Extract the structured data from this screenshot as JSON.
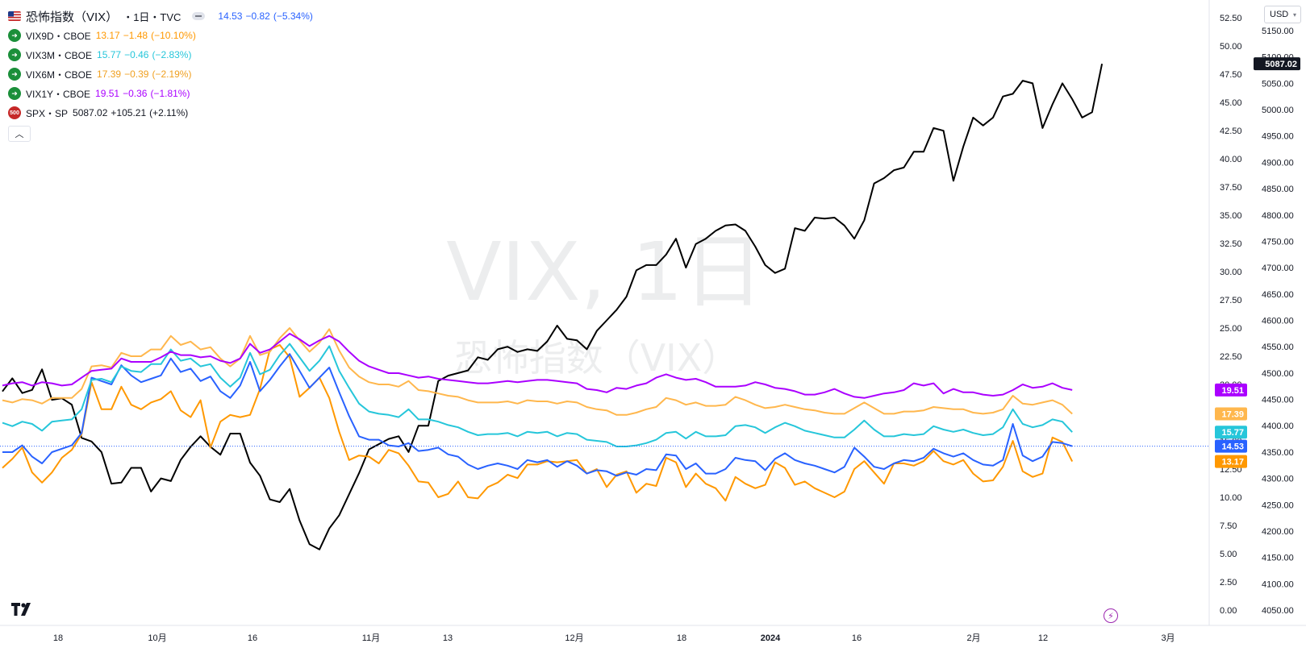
{
  "header": {
    "flag_icon": "us-flag-icon",
    "title": "恐怖指数（VIX）",
    "interval": "・1日・TVC",
    "last": "14.53",
    "change": "−0.82",
    "change_pct": "(−5.34%)",
    "change_color": "#2962ff"
  },
  "legend": [
    {
      "symbol": "VIX9D・CBOE",
      "icon": "arrow-right-icon",
      "value": "13.17",
      "change": "−1.48",
      "change_pct": "(−10.10%)",
      "color": "#ff9800"
    },
    {
      "symbol": "VIX3M・CBOE",
      "icon": "arrow-right-icon",
      "value": "15.77",
      "change": "−0.46",
      "change_pct": "(−2.83%)",
      "color": "#26c6da"
    },
    {
      "symbol": "VIX6M・CBOE",
      "icon": "arrow-right-icon",
      "value": "17.39",
      "change": "−0.39",
      "change_pct": "(−2.19%)",
      "color": "#ffb74d"
    },
    {
      "symbol": "VIX1Y・CBOE",
      "icon": "arrow-right-icon",
      "value": "19.51",
      "change": "−0.36",
      "change_pct": "(−1.81%)",
      "color": "#aa00ff"
    },
    {
      "symbol": "SPX・SP",
      "icon": "sp500-badge-icon",
      "icon_text": "500",
      "value": "5087.02",
      "change": "+105.21",
      "change_pct": "(+2.11%)",
      "color": "#131722"
    }
  ],
  "collapse_icon": "chevron-up-icon",
  "currency": "USD",
  "watermark": {
    "main": "VIX, 1日",
    "sub": "恐怖指数（VIX）"
  },
  "chart_data": {
    "type": "line",
    "x_tick_labels": [
      "18",
      "10月",
      "16",
      "11月",
      "13",
      "12月",
      "18",
      "2024",
      "16",
      "2月",
      "12",
      "3月"
    ],
    "left_axis": {
      "name": "VIX",
      "ylim": [
        -1.2,
        54.0
      ],
      "ticks": [
        "52.50",
        "50.00",
        "47.50",
        "45.00",
        "42.50",
        "40.00",
        "37.50",
        "35.00",
        "32.50",
        "30.00",
        "27.50",
        "25.00",
        "22.50",
        "20.00",
        "17.50",
        "15.00",
        "12.50",
        "10.00",
        "7.50",
        "5.00",
        "2.50",
        "0.00"
      ]
    },
    "right_axis": {
      "name": "SPX",
      "ylim": [
        4040,
        5183
      ],
      "ticks": [
        "5150.00",
        "5100.00",
        "5050.00",
        "5000.00",
        "4950.00",
        "4900.00",
        "4850.00",
        "4800.00",
        "4750.00",
        "4700.00",
        "4650.00",
        "4600.00",
        "4550.00",
        "4500.00",
        "4450.00",
        "4400.00",
        "4350.00",
        "4300.00",
        "4250.00",
        "4200.00",
        "4150.00",
        "4100.00",
        "4050.00"
      ]
    },
    "price_line": "14.53",
    "last_labels": [
      {
        "text": "5087.02",
        "value": 5087.02,
        "axis": "right",
        "color": "#131722"
      },
      {
        "text": "19.51",
        "value": 19.51,
        "axis": "left",
        "color": "#aa00ff"
      },
      {
        "text": "17.39",
        "value": 17.39,
        "axis": "left",
        "color": "#ffb74d"
      },
      {
        "text": "15.77",
        "value": 15.77,
        "axis": "left",
        "color": "#26c6da"
      },
      {
        "text": "14.53",
        "value": 14.53,
        "axis": "left",
        "color": "#2962ff"
      },
      {
        "text": "13.17",
        "value": 13.17,
        "axis": "left",
        "color": "#ff9800"
      }
    ],
    "series": [
      {
        "name": "SPX",
        "axis": "right",
        "color": "#000000",
        "values": [
          4465,
          4490,
          4462,
          4468,
          4507,
          4449,
          4452,
          4440,
          4377,
          4370,
          4350,
          4290,
          4292,
          4320,
          4320,
          4275,
          4300,
          4295,
          4335,
          4360,
          4380,
          4360,
          4345,
          4385,
          4385,
          4330,
          4305,
          4260,
          4255,
          4280,
          4220,
          4175,
          4165,
          4205,
          4230,
          4270,
          4310,
          4355,
          4365,
          4375,
          4380,
          4350,
          4400,
          4400,
          4485,
          4495,
          4500,
          4505,
          4530,
          4525,
          4545,
          4550,
          4540,
          4545,
          4542,
          4560,
          4590,
          4565,
          4562,
          4545,
          4580,
          4600,
          4620,
          4645,
          4695,
          4705,
          4705,
          4725,
          4755,
          4700,
          4745,
          4755,
          4770,
          4780,
          4782,
          4770,
          4740,
          4705,
          4690,
          4698,
          4775,
          4770,
          4795,
          4793,
          4795,
          4780,
          4755,
          4790,
          4860,
          4870,
          4885,
          4890,
          4920,
          4920,
          4965,
          4960,
          4865,
          4930,
          4985,
          4970,
          4985,
          5025,
          5030,
          5055,
          5050,
          4965,
          5010,
          5050,
          5020,
          4985,
          4995,
          5087
        ]
      },
      {
        "name": "VIX9D",
        "axis": "left",
        "color": "#ff9800",
        "values": [
          12.6,
          13.4,
          14.4,
          12.2,
          11.3,
          12.2,
          13.5,
          14.2,
          15.6,
          20.2,
          17.8,
          17.8,
          19.8,
          18.2,
          17.8,
          18.4,
          18.7,
          19.4,
          17.7,
          17.1,
          18.6,
          14.4,
          16.7,
          17.3,
          17.1,
          17.3,
          19.6,
          23.1,
          23.5,
          22.4,
          18.9,
          19.7,
          20.6,
          18.8,
          15.8,
          13.3,
          13.7,
          13.6,
          13.0,
          14.2,
          13.9,
          12.8,
          11.4,
          11.3,
          10.0,
          10.3,
          11.4,
          10.0,
          9.9,
          10.9,
          11.3,
          12.0,
          11.7,
          12.9,
          12.9,
          13.2,
          13.1,
          13.2,
          13.3,
          12.1,
          12.5,
          10.9,
          12.0,
          12.3,
          10.4,
          11.2,
          11.0,
          13.5,
          13.1,
          10.9,
          12.1,
          11.2,
          10.8,
          9.7,
          11.8,
          11.2,
          10.8,
          11.1,
          13.1,
          12.6,
          11.1,
          11.4,
          10.8,
          10.4,
          10.0,
          10.5,
          12.5,
          13.2,
          12.2,
          11.2,
          13.0,
          13.0,
          12.8,
          13.2,
          14.1,
          13.2,
          12.9,
          13.3,
          12.1,
          11.4,
          11.5,
          12.7,
          15.0,
          12.3,
          11.8,
          12.1,
          15.3,
          14.9,
          13.17
        ]
      },
      {
        "name": "VIX",
        "axis": "left",
        "color": "#2962ff",
        "values": [
          14.0,
          14.0,
          14.6,
          13.6,
          13.0,
          14.0,
          14.3,
          14.6,
          15.7,
          20.6,
          20.3,
          20.0,
          21.7,
          20.8,
          20.2,
          20.5,
          20.8,
          22.3,
          21.1,
          21.4,
          20.3,
          20.7,
          19.4,
          18.8,
          19.9,
          22.0,
          19.4,
          20.4,
          21.6,
          22.7,
          21.2,
          19.7,
          20.6,
          21.5,
          19.3,
          17.2,
          15.4,
          15.1,
          15.1,
          14.6,
          14.5,
          14.8,
          14.1,
          14.2,
          14.4,
          13.8,
          13.6,
          12.9,
          12.5,
          12.8,
          13.0,
          12.8,
          12.5,
          13.3,
          13.1,
          13.3,
          12.7,
          13.2,
          12.8,
          12.1,
          12.4,
          12.3,
          11.9,
          12.2,
          12.0,
          12.5,
          12.4,
          13.8,
          13.7,
          12.5,
          13.0,
          12.1,
          12.1,
          12.5,
          13.5,
          13.3,
          13.2,
          12.4,
          13.4,
          13.9,
          13.3,
          13.0,
          12.8,
          12.5,
          12.2,
          12.7,
          14.4,
          13.6,
          12.7,
          12.5,
          13.0,
          13.3,
          13.2,
          13.5,
          14.3,
          13.9,
          13.6,
          13.9,
          13.3,
          12.9,
          12.8,
          13.3,
          16.5,
          13.7,
          13.2,
          13.6,
          14.9,
          14.8,
          14.53
        ]
      },
      {
        "name": "VIX3M",
        "axis": "left",
        "color": "#26c6da",
        "values": [
          16.6,
          16.3,
          16.7,
          16.5,
          15.9,
          16.7,
          16.8,
          16.9,
          17.8,
          20.4,
          20.5,
          20.2,
          21.6,
          21.2,
          21.1,
          21.8,
          21.8,
          23.1,
          22.1,
          22.3,
          21.6,
          21.8,
          20.6,
          19.8,
          20.6,
          22.8,
          20.9,
          21.3,
          22.6,
          23.6,
          22.4,
          21.2,
          22.1,
          23.4,
          21.2,
          19.7,
          18.3,
          17.6,
          17.4,
          17.3,
          17.1,
          17.8,
          16.9,
          16.9,
          16.7,
          16.4,
          16.2,
          15.8,
          15.5,
          15.6,
          15.6,
          15.7,
          15.4,
          15.8,
          15.7,
          15.8,
          15.4,
          15.7,
          15.6,
          15.1,
          15.0,
          14.9,
          14.5,
          14.5,
          14.6,
          14.8,
          15.1,
          15.7,
          15.8,
          15.2,
          15.8,
          15.4,
          15.4,
          15.5,
          16.3,
          16.4,
          16.2,
          15.7,
          16.2,
          16.6,
          16.3,
          15.9,
          15.7,
          15.5,
          15.3,
          15.3,
          16.0,
          16.8,
          16.0,
          15.4,
          15.4,
          15.6,
          15.5,
          15.6,
          16.3,
          16.0,
          15.8,
          16.0,
          15.7,
          15.5,
          15.6,
          16.2,
          17.8,
          16.5,
          16.2,
          16.4,
          16.9,
          16.7,
          15.77
        ]
      },
      {
        "name": "VIX6M",
        "axis": "left",
        "color": "#ffb74d",
        "values": [
          18.6,
          18.4,
          18.7,
          18.6,
          18.3,
          18.8,
          18.8,
          18.8,
          19.6,
          21.6,
          21.7,
          21.5,
          22.8,
          22.5,
          22.5,
          23.1,
          23.1,
          24.3,
          23.5,
          23.8,
          23.1,
          23.3,
          22.3,
          21.6,
          22.3,
          24.3,
          22.6,
          22.9,
          24.1,
          25.0,
          23.9,
          22.9,
          23.7,
          24.9,
          23.0,
          21.5,
          20.7,
          20.2,
          20.0,
          20.0,
          19.8,
          20.3,
          19.5,
          19.4,
          19.2,
          19.0,
          18.9,
          18.6,
          18.4,
          18.4,
          18.4,
          18.5,
          18.3,
          18.6,
          18.5,
          18.5,
          18.3,
          18.5,
          18.4,
          18.0,
          17.8,
          17.7,
          17.3,
          17.3,
          17.5,
          17.8,
          18.0,
          18.8,
          18.6,
          18.2,
          18.4,
          18.1,
          18.1,
          18.2,
          18.9,
          18.6,
          18.2,
          17.9,
          18.0,
          18.2,
          18.0,
          17.8,
          17.7,
          17.5,
          17.4,
          17.4,
          17.9,
          18.4,
          17.9,
          17.4,
          17.4,
          17.6,
          17.6,
          17.7,
          18.0,
          17.9,
          17.8,
          17.8,
          17.5,
          17.4,
          17.5,
          17.8,
          19.0,
          18.3,
          18.2,
          18.4,
          18.6,
          18.2,
          17.39
        ]
      },
      {
        "name": "VIX1Y",
        "axis": "left",
        "color": "#aa00ff",
        "values": [
          19.9,
          20.1,
          20.2,
          19.9,
          20.2,
          20.1,
          19.9,
          20.0,
          20.6,
          21.2,
          21.3,
          21.4,
          22.3,
          22.0,
          22.0,
          22.0,
          22.4,
          22.9,
          22.6,
          22.6,
          22.4,
          22.5,
          22.1,
          21.9,
          22.3,
          23.6,
          22.8,
          23.1,
          23.8,
          24.5,
          24.0,
          23.4,
          23.9,
          24.3,
          23.8,
          22.9,
          22.1,
          21.6,
          21.3,
          21.0,
          21.0,
          20.8,
          20.6,
          20.7,
          20.5,
          20.4,
          20.3,
          20.2,
          20.1,
          20.1,
          20.2,
          20.3,
          20.2,
          20.3,
          20.4,
          20.4,
          20.3,
          20.2,
          20.1,
          19.6,
          19.5,
          19.3,
          19.7,
          19.6,
          19.9,
          20.1,
          20.6,
          20.9,
          20.6,
          20.4,
          20.5,
          20.2,
          19.8,
          19.8,
          19.8,
          19.9,
          20.2,
          20.0,
          19.7,
          19.6,
          19.4,
          19.1,
          19.1,
          19.3,
          19.6,
          19.2,
          18.9,
          18.8,
          19.0,
          19.2,
          19.3,
          19.5,
          20.1,
          19.9,
          20.1,
          19.2,
          19.6,
          19.3,
          19.3,
          19.1,
          19.0,
          19.1,
          19.5,
          20.0,
          19.7,
          19.8,
          20.1,
          19.7,
          19.51
        ]
      }
    ]
  }
}
